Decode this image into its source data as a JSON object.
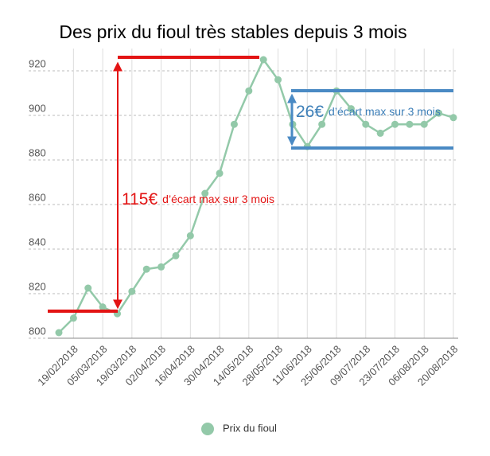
{
  "chart_data": {
    "type": "line",
    "title": "Des prix du fioul très stables depuis 3 mois",
    "categories": [
      null,
      "19/02/2018",
      null,
      "05/03/2018",
      null,
      "19/03/2018",
      null,
      "02/04/2018",
      null,
      "16/04/2018",
      null,
      "30/04/2018",
      null,
      "14/05/2018",
      null,
      "28/05/2018",
      null,
      "11/06/2018",
      null,
      "25/06/2018",
      null,
      "09/07/2018",
      null,
      "23/07/2018",
      null,
      "06/08/2018",
      null,
      "20/08/2018"
    ],
    "series": [
      {
        "name": "Prix du fioul",
        "color": "#93c9a9",
        "values": [
          802.5,
          809,
          822.5,
          814,
          811,
          821,
          831,
          832,
          837,
          846,
          865,
          874,
          896,
          911,
          925,
          916,
          896,
          886,
          896,
          911,
          903,
          896,
          892,
          896,
          896,
          896,
          901,
          899
        ]
      }
    ],
    "ylim": [
      800,
      930
    ],
    "yticks": [
      800,
      820,
      840,
      860,
      880,
      900,
      920
    ],
    "grid": true,
    "annotations": [
      {
        "amount": "115€",
        "text": "d’écart max sur 3 mois",
        "color": "#e31414"
      },
      {
        "amount": "26€",
        "text": "d’écart max sur 3 mois",
        "color": "#3d7fb8"
      }
    ]
  }
}
